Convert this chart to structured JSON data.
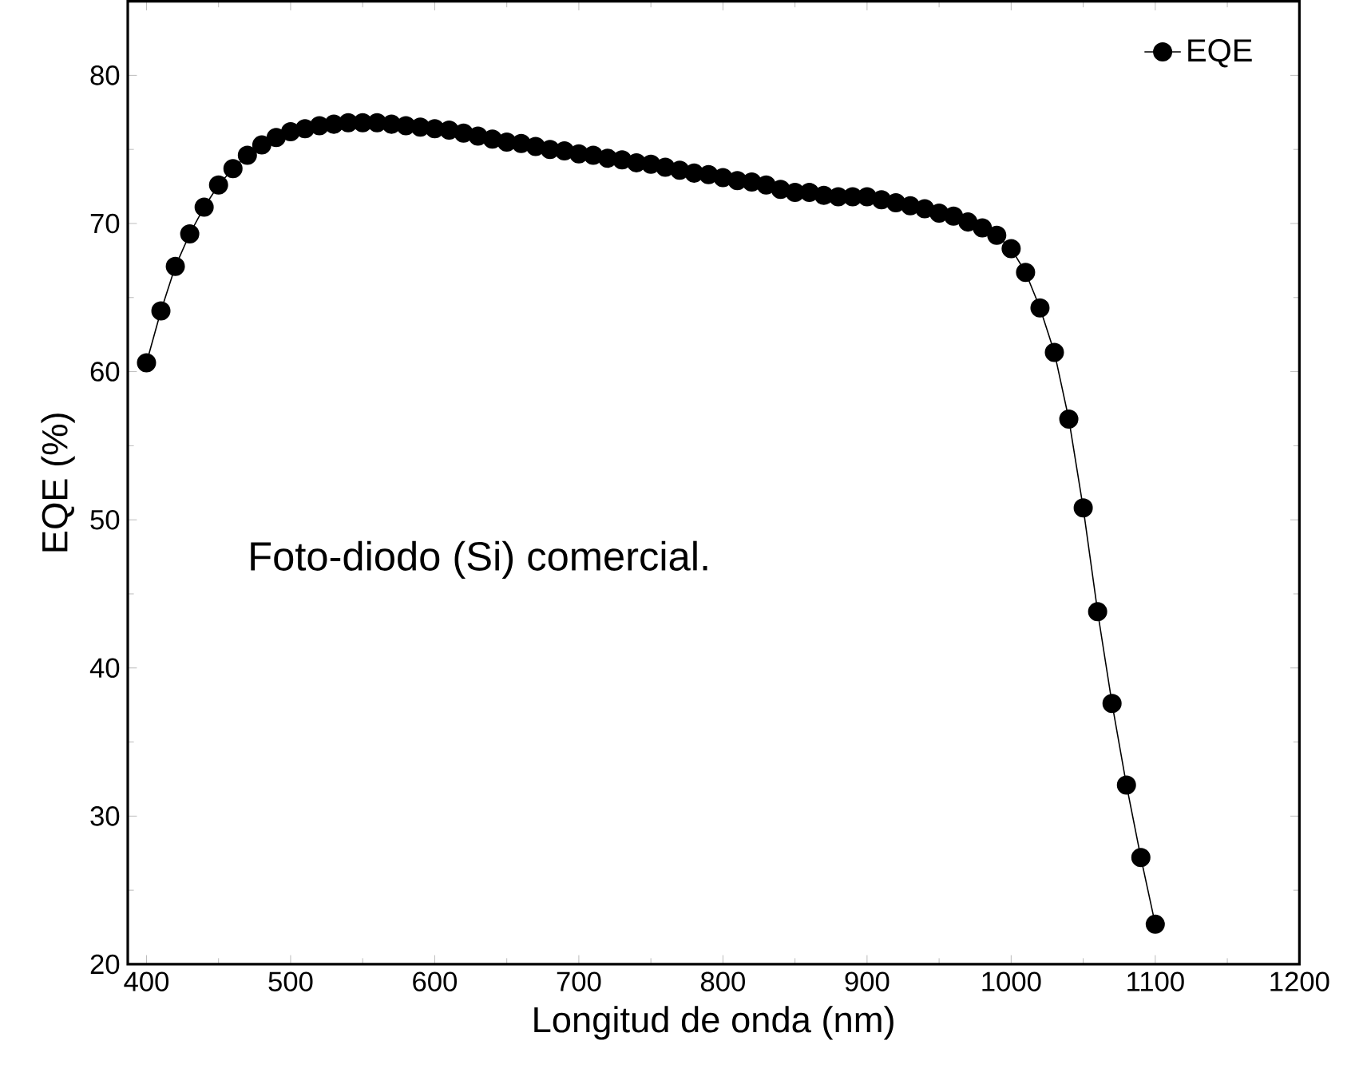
{
  "chart_data": {
    "type": "line",
    "xlabel": "Longitud de onda (nm)",
    "ylabel": "EQE (%)",
    "annotations": [
      "Foto-diodo (Si) comercial."
    ],
    "xlim": [
      387,
      1200
    ],
    "ylim": [
      20,
      85
    ],
    "xticks": [
      400,
      500,
      600,
      700,
      800,
      900,
      1000,
      1100,
      1200
    ],
    "yticks": [
      20,
      30,
      40,
      50,
      60,
      70,
      80
    ],
    "x": [
      400,
      410,
      420,
      430,
      440,
      450,
      460,
      470,
      480,
      490,
      500,
      510,
      520,
      530,
      540,
      550,
      560,
      570,
      580,
      590,
      600,
      610,
      620,
      630,
      640,
      650,
      660,
      670,
      680,
      690,
      700,
      710,
      720,
      730,
      740,
      750,
      760,
      770,
      780,
      790,
      800,
      810,
      820,
      830,
      840,
      850,
      860,
      870,
      880,
      890,
      900,
      910,
      920,
      930,
      940,
      950,
      960,
      970,
      980,
      990,
      1000,
      1010,
      1020,
      1030,
      1040,
      1050,
      1060,
      1070,
      1080,
      1090,
      1100
    ],
    "series": [
      {
        "name": "EQE",
        "color": "#000000",
        "values": [
          60.6,
          64.1,
          67.1,
          69.3,
          71.1,
          72.6,
          73.7,
          74.6,
          75.3,
          75.8,
          76.2,
          76.4,
          76.6,
          76.7,
          76.8,
          76.8,
          76.8,
          76.7,
          76.6,
          76.5,
          76.4,
          76.3,
          76.1,
          75.9,
          75.7,
          75.5,
          75.4,
          75.2,
          75.0,
          74.9,
          74.7,
          74.6,
          74.4,
          74.3,
          74.1,
          74.0,
          73.8,
          73.6,
          73.4,
          73.3,
          73.1,
          72.9,
          72.8,
          72.6,
          72.3,
          72.1,
          72.1,
          71.9,
          71.8,
          71.8,
          71.8,
          71.6,
          71.4,
          71.2,
          71.0,
          70.7,
          70.5,
          70.1,
          69.7,
          69.2,
          68.3,
          66.7,
          64.3,
          61.3,
          56.8,
          50.8,
          43.8,
          37.6,
          32.1,
          27.2,
          22.7
        ]
      }
    ],
    "marker": "circle",
    "line_style": "solid",
    "legend": "top right",
    "grid": false
  }
}
